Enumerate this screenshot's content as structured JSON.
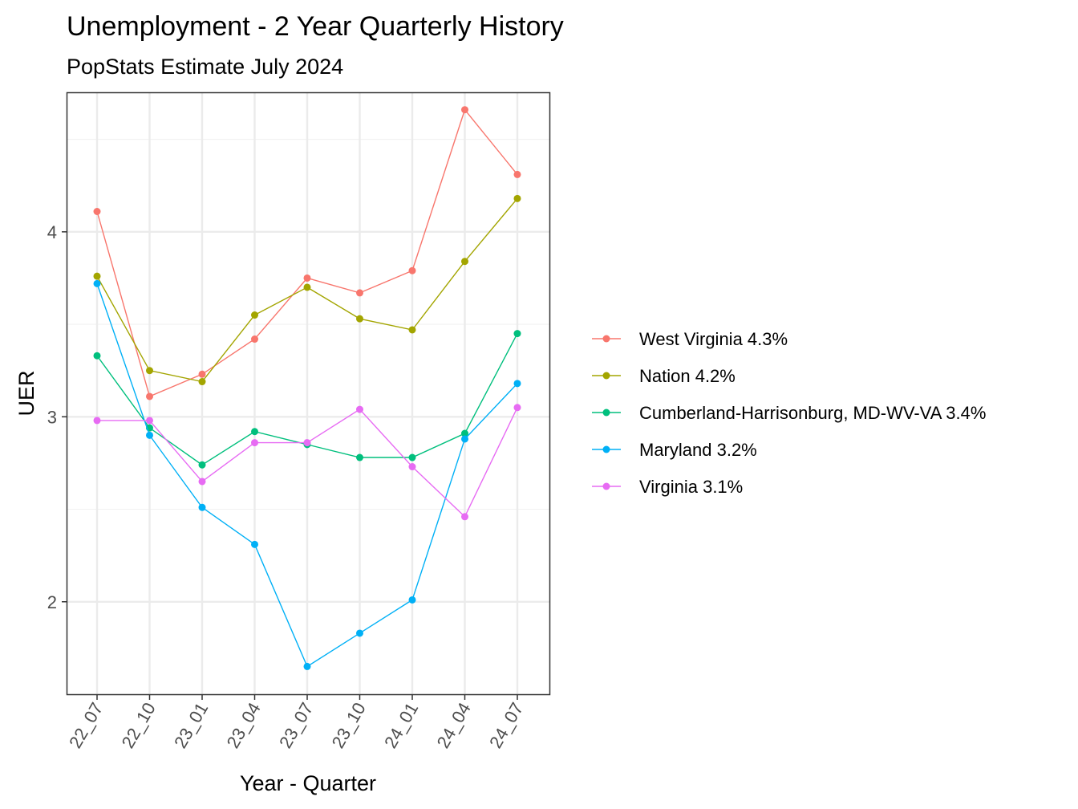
{
  "chart_data": {
    "type": "line",
    "title": "Unemployment - 2 Year Quarterly History",
    "subtitle": "PopStats Estimate July 2024",
    "xlabel": "Year - Quarter",
    "ylabel": "UER",
    "categories": [
      "22_07",
      "22_10",
      "23_01",
      "23_04",
      "23_07",
      "23_10",
      "24_01",
      "24_04",
      "24_07"
    ],
    "ylim": [
      1.5,
      4.75
    ],
    "yticks": [
      2,
      3,
      4
    ],
    "grid": true,
    "legend_position": "right",
    "series": [
      {
        "name": "West Virginia 4.3%",
        "color": "#F8766D",
        "values": [
          4.11,
          3.11,
          3.23,
          3.42,
          3.75,
          3.67,
          3.79,
          4.66,
          4.31
        ]
      },
      {
        "name": "Nation 4.2%",
        "color": "#A3A500",
        "values": [
          3.76,
          3.25,
          3.19,
          3.55,
          3.7,
          3.53,
          3.47,
          3.84,
          4.18
        ]
      },
      {
        "name": "Cumberland-Harrisonburg, MD-WV-VA 3.4%",
        "color": "#00BF7D",
        "values": [
          3.33,
          2.94,
          2.74,
          2.92,
          2.85,
          2.78,
          2.78,
          2.91,
          3.45
        ]
      },
      {
        "name": "Maryland 3.2%",
        "color": "#00B0F6",
        "values": [
          3.72,
          2.9,
          2.51,
          2.31,
          1.65,
          1.83,
          2.01,
          2.88,
          3.18
        ]
      },
      {
        "name": "Virginia 3.1%",
        "color": "#E76BF3",
        "values": [
          2.98,
          2.98,
          2.65,
          2.86,
          2.86,
          3.04,
          2.73,
          2.46,
          3.05
        ]
      }
    ]
  }
}
